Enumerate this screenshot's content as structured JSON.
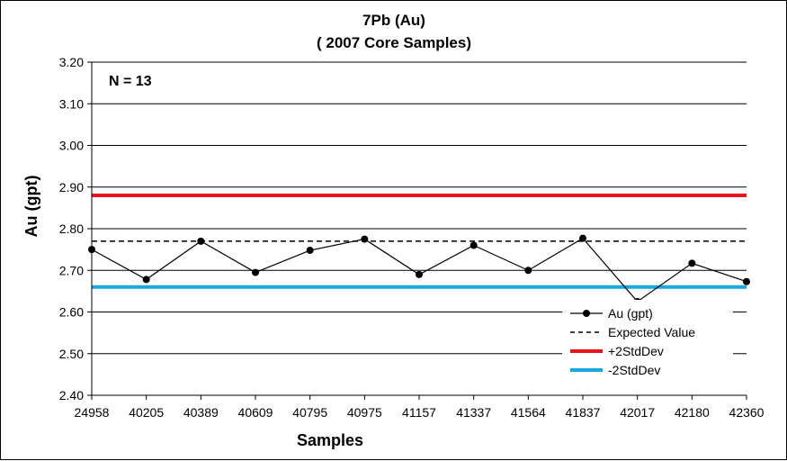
{
  "chart_data": {
    "type": "line",
    "title": "7Pb (Au)",
    "subtitle": "( 2007 Core Samples)",
    "xlabel": "Samples",
    "ylabel": "Au (gpt)",
    "annotation": "N = 13",
    "categories": [
      "24958",
      "40205",
      "40389",
      "40609",
      "40795",
      "40975",
      "41157",
      "41337",
      "41564",
      "41837",
      "42017",
      "42180",
      "42360"
    ],
    "ylim": [
      2.4,
      3.2
    ],
    "yticks": [
      "2.40",
      "2.50",
      "2.60",
      "2.70",
      "2.80",
      "2.90",
      "3.00",
      "3.10",
      "3.20"
    ],
    "grid": true,
    "legend_position": "bottom-right",
    "series": [
      {
        "name": "Au (gpt)",
        "style": "line-marker",
        "color": "#000000",
        "values": [
          2.75,
          2.678,
          2.77,
          2.695,
          2.748,
          2.775,
          2.69,
          2.76,
          2.7,
          2.777,
          2.625,
          2.717,
          2.673
        ]
      },
      {
        "name": "Expected Value",
        "style": "dashed",
        "color": "#000000",
        "constant": 2.77
      },
      {
        "name": "+2StdDev",
        "style": "thick",
        "color": "#e8141b",
        "constant": 2.88
      },
      {
        "name": "-2StdDev",
        "style": "thick",
        "color": "#1aa7de",
        "constant": 2.66
      }
    ]
  }
}
